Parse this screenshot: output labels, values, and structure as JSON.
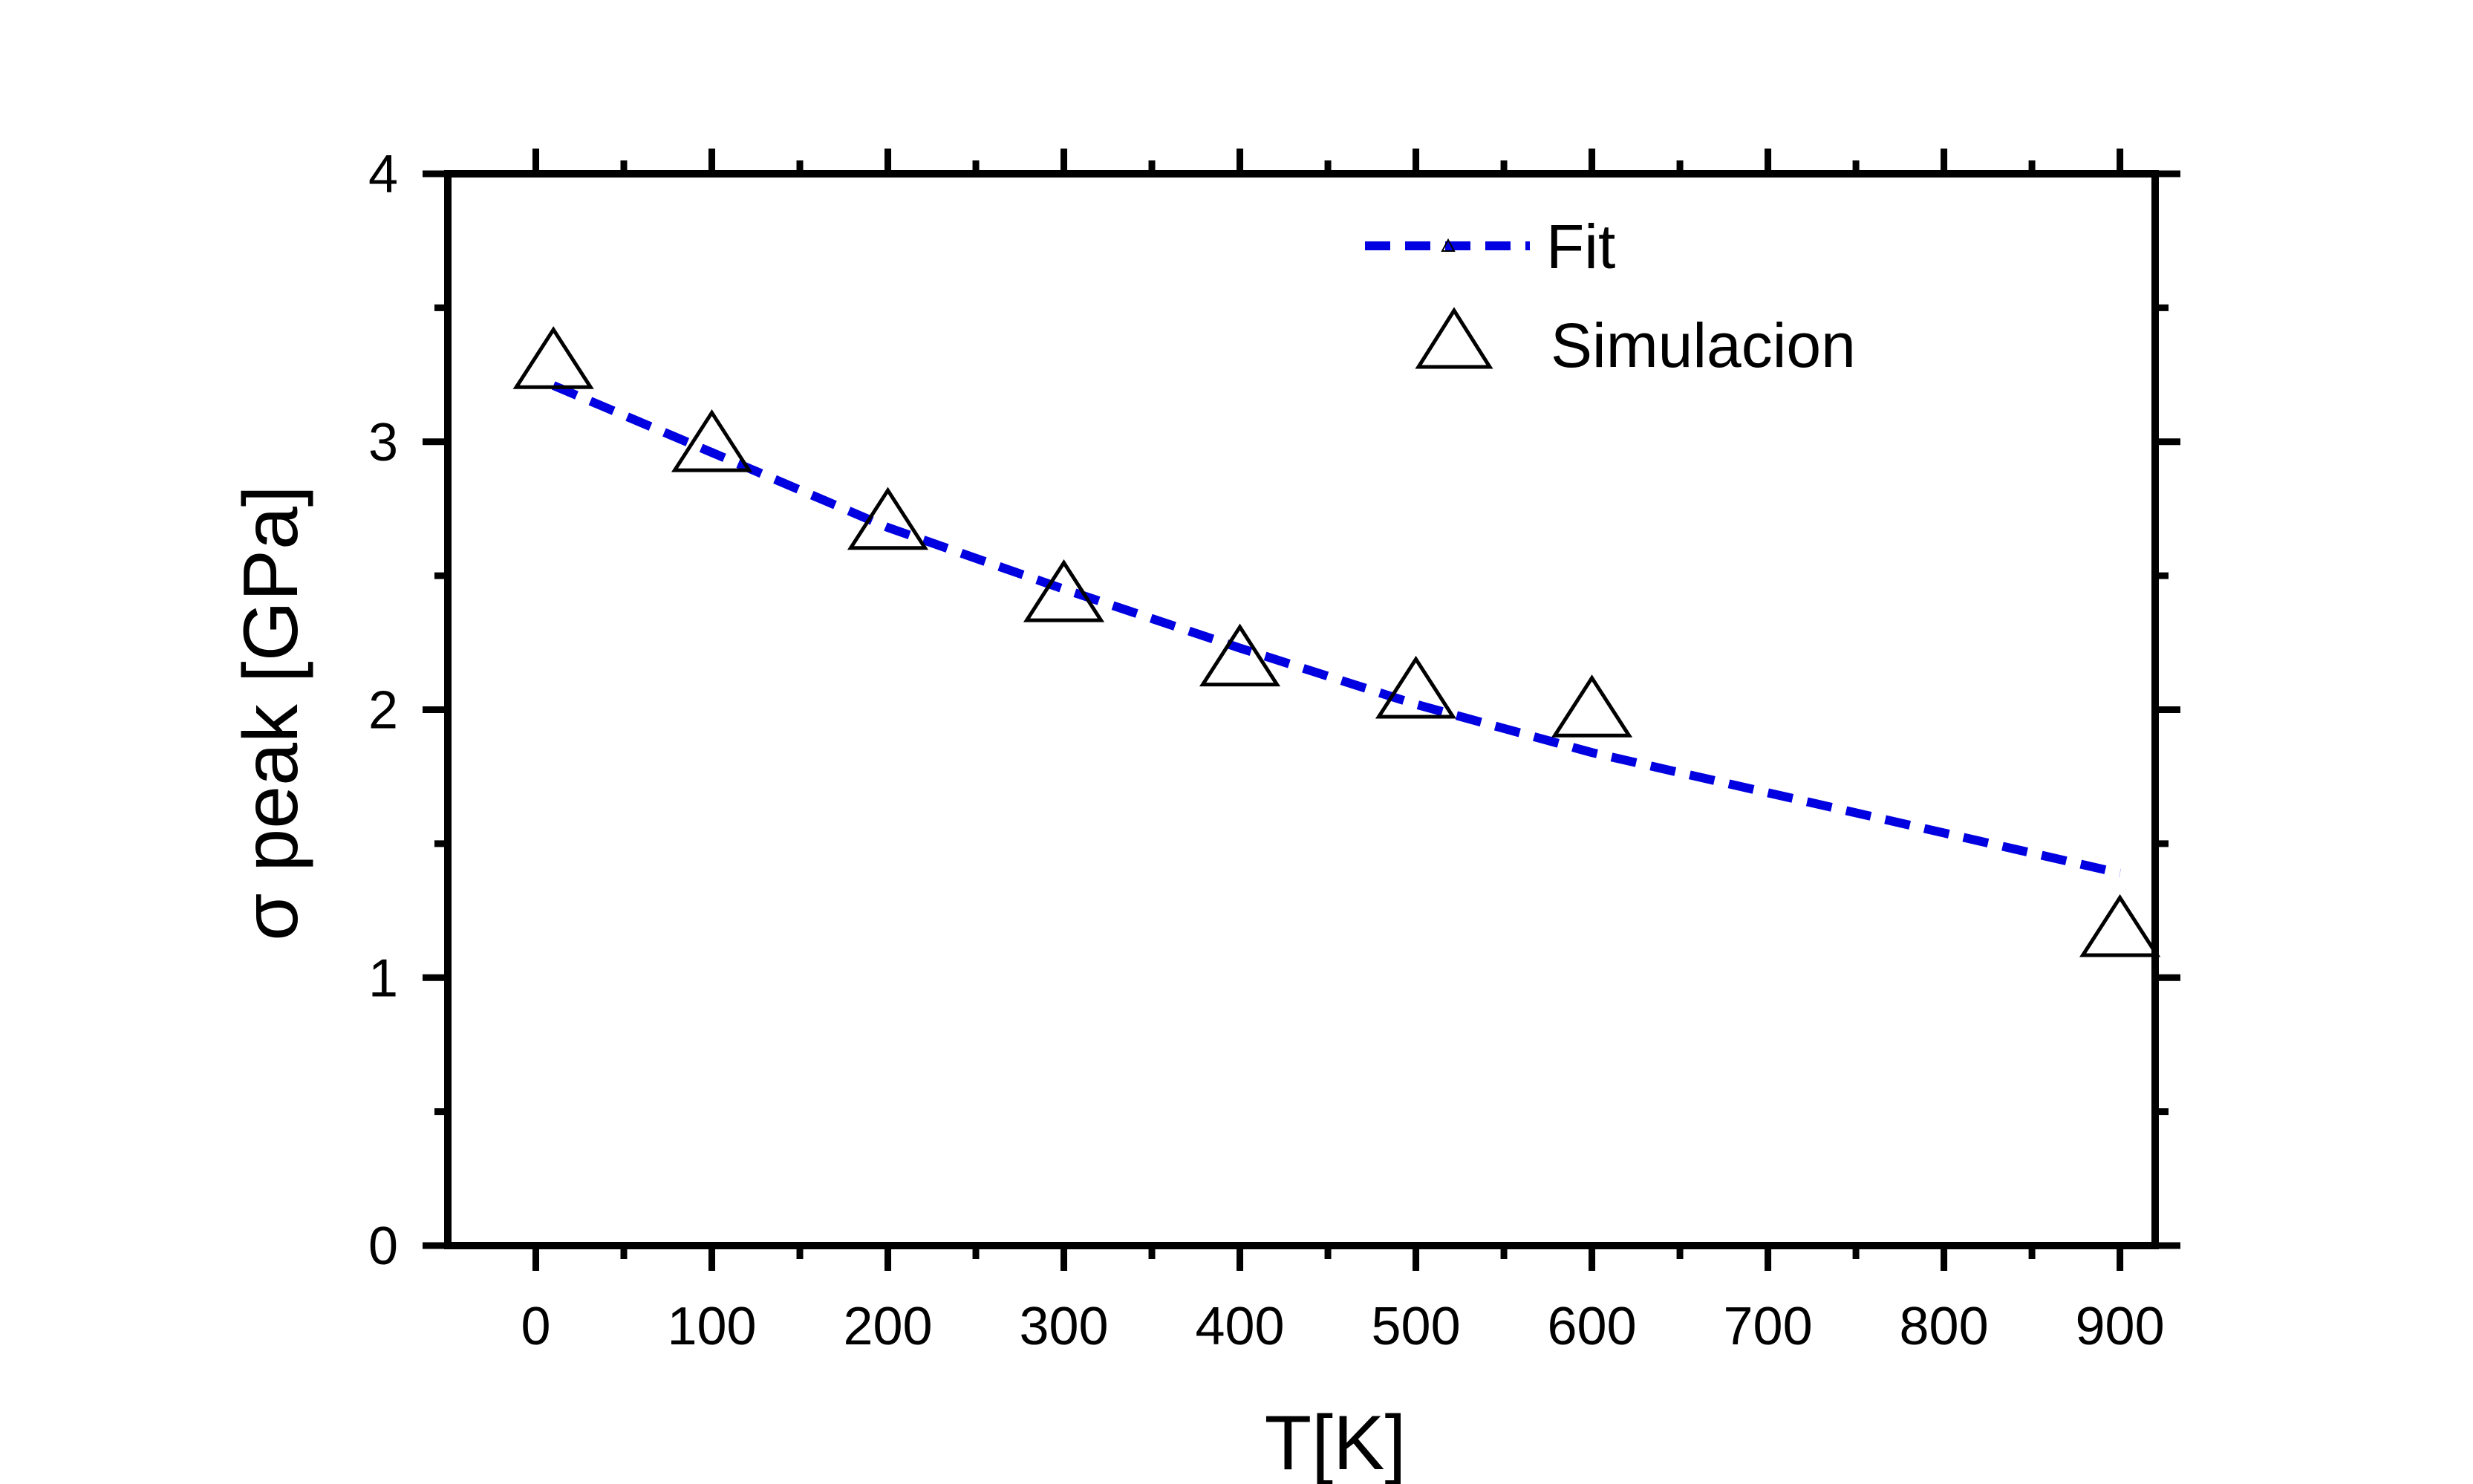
{
  "chart_data": {
    "type": "scatter",
    "xlabel": "T[K]",
    "ylabel": "σ peak [GPa]",
    "xlim": [
      -50,
      920
    ],
    "ylim": [
      0,
      4
    ],
    "x_ticks": [
      0,
      100,
      200,
      300,
      400,
      500,
      600,
      700,
      800,
      900
    ],
    "y_ticks": [
      0,
      1,
      2,
      3,
      4
    ],
    "x_tick_labels": [
      "0",
      "100",
      "200",
      "300",
      "400",
      "500",
      "600",
      "700",
      "800",
      "900"
    ],
    "y_tick_labels": [
      "0",
      "1",
      "2",
      "3",
      "4"
    ],
    "legend_position": "top-right",
    "series": [
      {
        "name": "Fit",
        "style": "dashed-line",
        "color": "#0000e0",
        "x": [
          10,
          100,
          200,
          300,
          400,
          500,
          600,
          700,
          800,
          900
        ],
        "y": [
          3.21,
          2.96,
          2.68,
          2.45,
          2.23,
          2.02,
          1.84,
          1.69,
          1.54,
          1.39
        ]
      },
      {
        "name": "Simulacion",
        "style": "open-triangle",
        "color": "#000000",
        "x": [
          10,
          100,
          200,
          300,
          400,
          500,
          600,
          900
        ],
        "y": [
          3.28,
          2.97,
          2.68,
          2.41,
          2.17,
          2.05,
          1.98,
          1.16
        ]
      }
    ]
  }
}
